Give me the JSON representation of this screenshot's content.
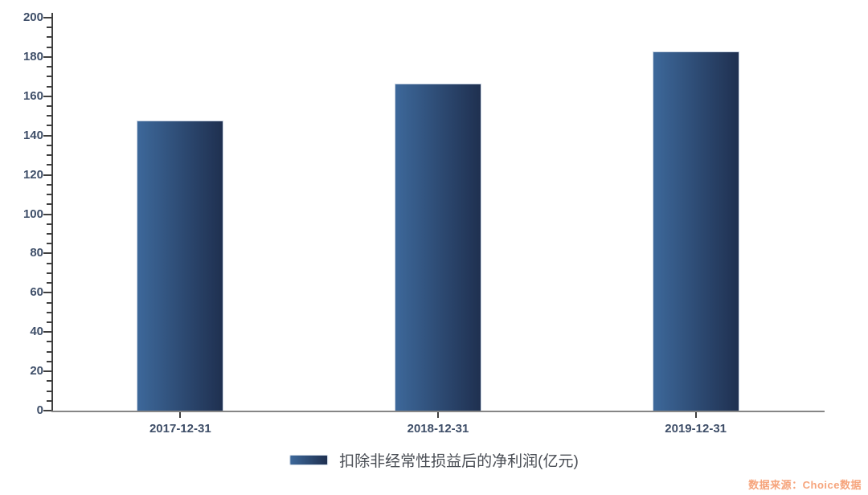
{
  "chart_data": {
    "type": "bar",
    "title": "",
    "categories": [
      "2017-12-31",
      "2018-12-31",
      "2019-12-31"
    ],
    "series": [
      {
        "name": "扣除非经常性损益后的净利润(亿元)",
        "values": [
          147.5,
          166.5,
          183
        ]
      }
    ],
    "xlabel": "",
    "ylabel": "",
    "ylim": [
      0,
      200
    ],
    "ytick_interval": 20,
    "ytick_minor_interval": 5,
    "grid": false,
    "legend_position": "bottom-center",
    "bar_color_start": "#3d689a",
    "bar_color_end": "#1f3050"
  },
  "colors": {
    "axis_label": "#3e4e68",
    "y_axis_line": "#3f3f3f",
    "x_axis_line": "#868686",
    "legend_text": "#4a4e55",
    "source_text": "#f6a47c"
  },
  "footer": {
    "source_text": "数据来源：Choice数据"
  }
}
